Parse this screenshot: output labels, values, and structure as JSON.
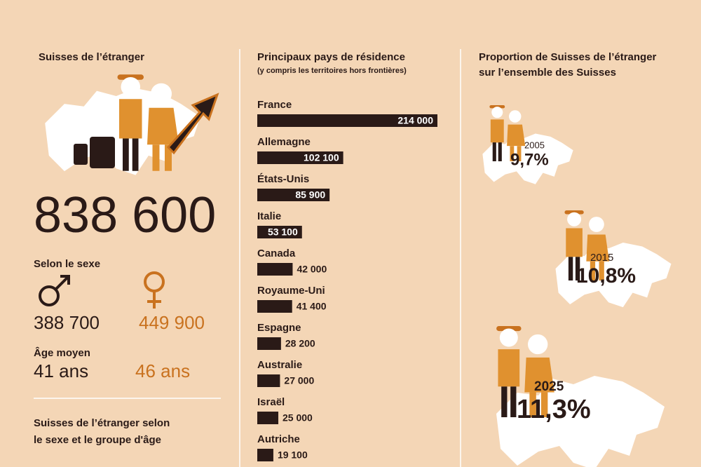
{
  "left": {
    "title": "Suisses de l’étranger",
    "total": "838 600",
    "sex_label": "Selon le sexe",
    "men": "388 700",
    "women": "449 900",
    "age_label": "Âge moyen",
    "age_men": "41 ans",
    "age_women": "46 ans",
    "footer_line1": "Suisses de l’étranger selon",
    "footer_line2": "le sexe et le groupe d'âge"
  },
  "chart_data": {
    "type": "bar",
    "title": "Principaux pays de résidence",
    "subtitle": "(y compris les territoires hors frontières)",
    "categories": [
      "France",
      "Allemagne",
      "États-Unis",
      "Italie",
      "Canada",
      "Royaume-Uni",
      "Espagne",
      "Australie",
      "Israël",
      "Autriche"
    ],
    "values": [
      214000,
      102100,
      85900,
      53100,
      42000,
      41400,
      28200,
      27000,
      25000,
      19100
    ],
    "value_labels": [
      "214 000",
      "102 100",
      "85 900",
      "53 100",
      "42 000",
      "41 400",
      "28 200",
      "27 000",
      "25 000",
      "19 100"
    ],
    "color": "#2a1a17"
  },
  "right": {
    "title_line1": "Proportion de Suisses de l’étranger",
    "title_line2": "sur l’ensemble des Suisses",
    "items": [
      {
        "year": "2005",
        "share": "9,7%"
      },
      {
        "year": "2015",
        "share": "10,8%"
      },
      {
        "year": "2025",
        "share": "11,3%"
      }
    ]
  }
}
